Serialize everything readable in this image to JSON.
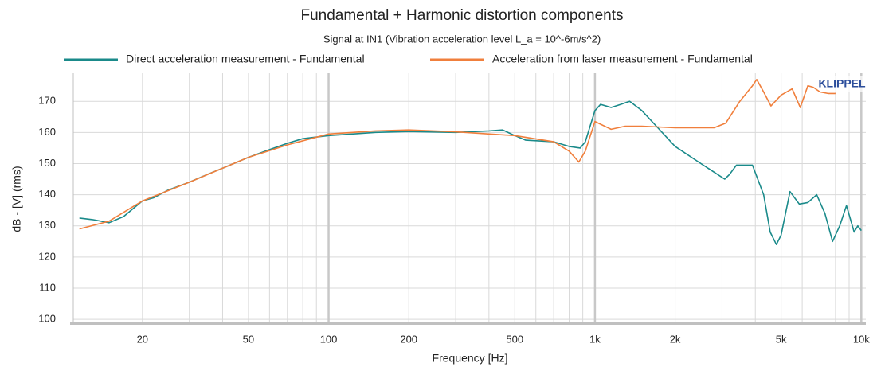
{
  "chart_data": {
    "type": "line",
    "title": "Fundamental + Harmonic distortion components",
    "subtitle": "Signal at IN1 (Vibration acceleration level L_a = 10^-6m/s^2)",
    "xlabel": "Frequency [Hz]",
    "ylabel": "dB - [V] (rms)",
    "logo": "KLIPPEL",
    "xscale": "log",
    "grid": true,
    "legend": "top",
    "xlim": [
      11,
      10400
    ],
    "ylim": [
      99,
      179
    ],
    "xticks": [
      20,
      50,
      100,
      200,
      500,
      {
        "value": 1000,
        "label": "1k"
      },
      {
        "value": 2000,
        "label": "2k"
      },
      {
        "value": 5000,
        "label": "5k"
      },
      {
        "value": 10000,
        "label": "10k"
      }
    ],
    "xminorticks": [
      30,
      40,
      60,
      70,
      80,
      90,
      300,
      400,
      600,
      700,
      800,
      900,
      3000,
      4000,
      6000,
      7000,
      8000,
      9000
    ],
    "yticks": [
      100,
      110,
      120,
      130,
      140,
      150,
      160,
      170
    ],
    "series": [
      {
        "name": "Direct acceleration measurement - Fundamental",
        "color": "#1a8a8a",
        "x": [
          11.6,
          13,
          15,
          17,
          20,
          22,
          25,
          30,
          35,
          40,
          50,
          60,
          70,
          80,
          100,
          150,
          200,
          300,
          400,
          450,
          500,
          550,
          700,
          800,
          880,
          920,
          1000,
          1050,
          1150,
          1250,
          1350,
          1500,
          1700,
          2000,
          2500,
          3070,
          3200,
          3400,
          3900,
          4300,
          4550,
          4800,
          5000,
          5400,
          5850,
          6300,
          6800,
          7300,
          7800,
          8300,
          8800,
          9400,
          9700,
          10000
        ],
        "values": [
          132.5,
          132,
          131,
          133,
          138,
          139,
          141.5,
          144,
          146.5,
          148.5,
          152,
          154.5,
          156.5,
          158,
          159,
          160,
          160.3,
          160,
          160.5,
          160.8,
          159,
          157.5,
          157,
          155.5,
          155,
          157,
          167,
          169,
          168,
          169,
          170,
          167,
          162,
          155.5,
          150,
          145,
          146.5,
          149.5,
          149.5,
          140,
          128,
          124,
          127,
          141,
          137,
          137.5,
          140,
          134,
          125,
          130,
          136.5,
          128,
          130,
          128.5
        ]
      },
      {
        "name": "Acceleration from laser measurement - Fundamental",
        "color": "#f07f3c",
        "x": [
          11.6,
          15,
          20,
          30,
          50,
          70,
          100,
          150,
          200,
          300,
          500,
          700,
          800,
          870,
          920,
          1000,
          1150,
          1300,
          1500,
          2000,
          2800,
          3100,
          3500,
          3900,
          4050,
          4300,
          4580,
          5000,
          5500,
          5900,
          6300,
          6600,
          7000,
          7500,
          8000
        ],
        "values": [
          129,
          131.5,
          138,
          144,
          152,
          156,
          159.5,
          160.5,
          160.8,
          160.2,
          159,
          157,
          154,
          150.5,
          154,
          163.5,
          161,
          162,
          162,
          161.5,
          161.5,
          163,
          170,
          175,
          177,
          173,
          168.5,
          172,
          174,
          168,
          175,
          174.5,
          173,
          172.5,
          172.5
        ]
      }
    ]
  }
}
